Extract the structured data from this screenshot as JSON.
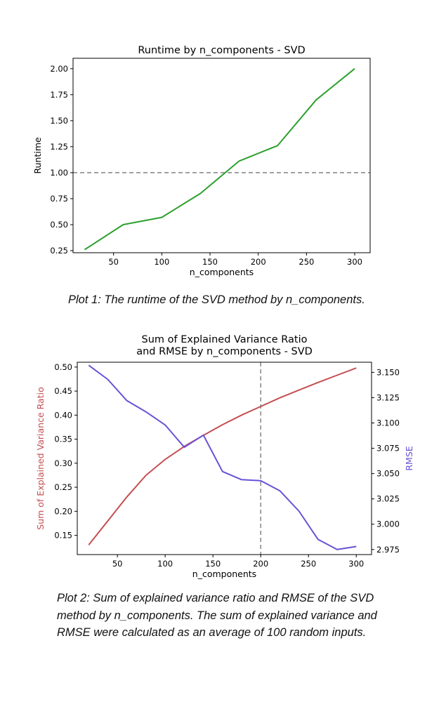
{
  "colors": {
    "runtime_line": "#2ca02c",
    "variance_line": "#c44e52",
    "rmse_line": "#6a51d6",
    "reference_line": "#8c8c8c",
    "axis": "#000000"
  },
  "chart_data": [
    {
      "type": "line",
      "title": "Runtime by n_components - SVD",
      "xlabel": "n_components",
      "ylabel": "Runtime",
      "xlim": [
        8,
        316
      ],
      "ylim": [
        0.23,
        2.1
      ],
      "xticks": [
        "50",
        "100",
        "150",
        "200",
        "250",
        "300"
      ],
      "yticks": [
        "0.25",
        "0.50",
        "0.75",
        "1.00",
        "1.25",
        "1.50",
        "1.75",
        "2.00"
      ],
      "grid": false,
      "series": [
        {
          "x": [
            20,
            60,
            100,
            140,
            180,
            220,
            260,
            300
          ],
          "values": [
            0.26,
            0.5,
            0.57,
            0.8,
            1.11,
            1.26,
            1.7,
            2.0
          ]
        }
      ],
      "reference_line": {
        "orientation": "horizontal",
        "value": 1.0,
        "style": "dashed"
      }
    },
    {
      "type": "line",
      "title": "Sum of Explained Variance Ratio\nand RMSE by n_components - SVD",
      "xlabel": "n_components",
      "ylabel": "Sum of Explained Variance Ratio",
      "ylabel_right": "RMSE",
      "xlim": [
        8,
        316
      ],
      "ylim": [
        0.11,
        0.51
      ],
      "ylim_right": [
        2.97,
        3.16
      ],
      "xticks": [
        "50",
        "100",
        "150",
        "200",
        "250",
        "300"
      ],
      "yticks": [
        "0.15",
        "0.20",
        "0.25",
        "0.30",
        "0.35",
        "0.40",
        "0.45",
        "0.50"
      ],
      "yticks_right": [
        "2.975",
        "3.000",
        "3.025",
        "3.050",
        "3.075",
        "3.100",
        "3.125",
        "3.150"
      ],
      "grid": false,
      "series": [
        {
          "axis": "left",
          "x": [
            20,
            40,
            60,
            80,
            100,
            120,
            140,
            160,
            180,
            200,
            220,
            240,
            260,
            280,
            300
          ],
          "values": [
            0.13,
            0.18,
            0.23,
            0.275,
            0.308,
            0.335,
            0.358,
            0.38,
            0.4,
            0.418,
            0.436,
            0.452,
            0.468,
            0.483,
            0.498
          ]
        },
        {
          "axis": "right",
          "x": [
            20,
            40,
            60,
            80,
            100,
            120,
            140,
            160,
            180,
            200,
            220,
            240,
            260,
            280,
            300
          ],
          "values": [
            3.157,
            3.143,
            3.122,
            3.111,
            3.098,
            3.076,
            3.088,
            3.052,
            3.044,
            3.043,
            3.033,
            3.013,
            2.985,
            2.975,
            2.978
          ]
        }
      ],
      "reference_line": {
        "orientation": "vertical",
        "value": 200,
        "style": "dashed"
      }
    }
  ],
  "captions": {
    "plot1": "Plot 1: The runtime of the SVD method by n_components.",
    "plot2": "Plot 2: Sum of explained variance ratio and RMSE of the SVD method by n_components. The sum of explained variance and RMSE were calculated as an average of 100 random inputs."
  }
}
